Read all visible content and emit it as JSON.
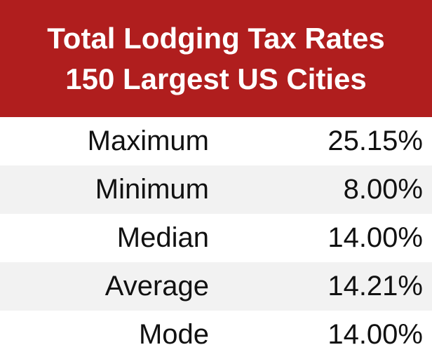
{
  "header": {
    "title": [
      "Total Lodging Tax Rates",
      "150 Largest US Cities"
    ]
  },
  "table": {
    "rows": [
      [
        "Maximum",
        "25.15%"
      ],
      [
        "Minimum",
        "8.00%"
      ],
      [
        "Median",
        "14.00%"
      ],
      [
        "Average",
        "14.21%"
      ],
      [
        "Mode",
        "14.00%"
      ]
    ]
  }
}
